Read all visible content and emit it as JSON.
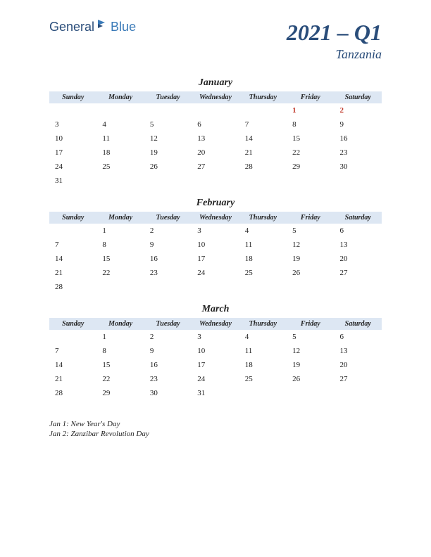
{
  "logo": {
    "text1": "General",
    "text2": "Blue"
  },
  "title": "2021 – Q1",
  "subtitle": "Tanzania",
  "colors": {
    "header_bg": "#dde7f3",
    "title_color": "#2a4d7a",
    "holiday_color": "#c0392b",
    "text_color": "#222222",
    "background": "#ffffff"
  },
  "weekdays": [
    "Sunday",
    "Monday",
    "Tuesday",
    "Wednesday",
    "Thursday",
    "Friday",
    "Saturday"
  ],
  "months": [
    {
      "name": "January",
      "weeks": [
        [
          "",
          "",
          "",
          "",
          "",
          "1",
          "2"
        ],
        [
          "3",
          "4",
          "5",
          "6",
          "7",
          "8",
          "9"
        ],
        [
          "10",
          "11",
          "12",
          "13",
          "14",
          "15",
          "16"
        ],
        [
          "17",
          "18",
          "19",
          "20",
          "21",
          "22",
          "23"
        ],
        [
          "24",
          "25",
          "26",
          "27",
          "28",
          "29",
          "30"
        ],
        [
          "31",
          "",
          "",
          "",
          "",
          "",
          ""
        ]
      ],
      "holidays": [
        "1",
        "2"
      ]
    },
    {
      "name": "February",
      "weeks": [
        [
          "",
          "1",
          "2",
          "3",
          "4",
          "5",
          "6"
        ],
        [
          "7",
          "8",
          "9",
          "10",
          "11",
          "12",
          "13"
        ],
        [
          "14",
          "15",
          "16",
          "17",
          "18",
          "19",
          "20"
        ],
        [
          "21",
          "22",
          "23",
          "24",
          "25",
          "26",
          "27"
        ],
        [
          "28",
          "",
          "",
          "",
          "",
          "",
          ""
        ]
      ],
      "holidays": []
    },
    {
      "name": "March",
      "weeks": [
        [
          "",
          "1",
          "2",
          "3",
          "4",
          "5",
          "6"
        ],
        [
          "7",
          "8",
          "9",
          "10",
          "11",
          "12",
          "13"
        ],
        [
          "14",
          "15",
          "16",
          "17",
          "18",
          "19",
          "20"
        ],
        [
          "21",
          "22",
          "23",
          "24",
          "25",
          "26",
          "27"
        ],
        [
          "28",
          "29",
          "30",
          "31",
          "",
          "",
          ""
        ]
      ],
      "holidays": []
    }
  ],
  "holiday_notes": [
    "Jan 1: New Year's Day",
    "Jan 2: Zanzibar Revolution Day"
  ]
}
